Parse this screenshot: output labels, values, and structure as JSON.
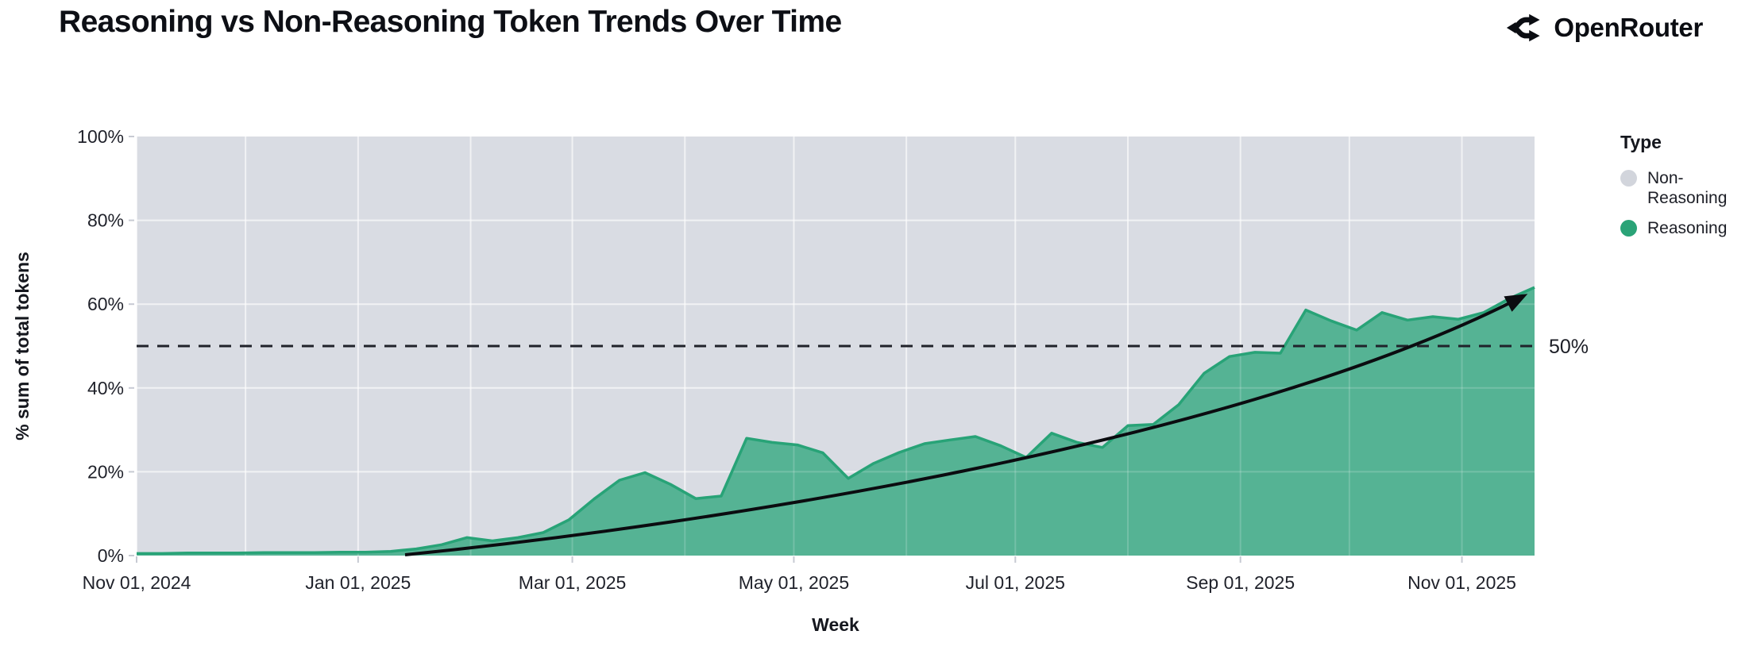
{
  "header": {
    "title": "Reasoning vs Non-Reasoning Token Trends Over Time",
    "brand": "OpenRouter"
  },
  "chart_data": {
    "type": "area",
    "stacked_percent": true,
    "title": "Reasoning vs Non-Reasoning Token Trends Over Time",
    "xlabel": "Week",
    "ylabel": "% sum of total tokens",
    "ylim": [
      0,
      100
    ],
    "grid": true,
    "y_ticks": [
      "0%",
      "20%",
      "40%",
      "60%",
      "80%",
      "100%"
    ],
    "y_tick_values": [
      0,
      20,
      40,
      60,
      80,
      100
    ],
    "x_ticks": [
      "Nov 01, 2024",
      "Jan 01, 2025",
      "Mar 01, 2025",
      "May 01, 2025",
      "Jul 01, 2025",
      "Sep 01, 2025",
      "Nov 01, 2025"
    ],
    "x_tick_dates": [
      "2024-11-01",
      "2025-01-01",
      "2025-03-01",
      "2025-05-01",
      "2025-07-01",
      "2025-09-01",
      "2025-11-01"
    ],
    "x_domain": [
      "2024-11-01",
      "2025-11-21"
    ],
    "legend": {
      "title": "Type",
      "position": "right",
      "entries": [
        {
          "label": "Non-Reasoning",
          "color": "#d2d5dc"
        },
        {
          "label": "Reasoning",
          "color": "#2aa377"
        }
      ]
    },
    "x": [
      "2024-11-01",
      "2024-11-08",
      "2024-11-15",
      "2024-11-22",
      "2024-11-29",
      "2024-12-06",
      "2024-12-13",
      "2024-12-20",
      "2024-12-27",
      "2025-01-03",
      "2025-01-10",
      "2025-01-17",
      "2025-01-24",
      "2025-01-31",
      "2025-02-07",
      "2025-02-14",
      "2025-02-21",
      "2025-02-28",
      "2025-03-07",
      "2025-03-14",
      "2025-03-21",
      "2025-03-28",
      "2025-04-04",
      "2025-04-11",
      "2025-04-18",
      "2025-04-25",
      "2025-05-02",
      "2025-05-09",
      "2025-05-16",
      "2025-05-23",
      "2025-05-30",
      "2025-06-06",
      "2025-06-13",
      "2025-06-20",
      "2025-06-27",
      "2025-07-04",
      "2025-07-11",
      "2025-07-18",
      "2025-07-25",
      "2025-08-01",
      "2025-08-08",
      "2025-08-15",
      "2025-08-22",
      "2025-08-29",
      "2025-09-05",
      "2025-09-12",
      "2025-09-19",
      "2025-09-26",
      "2025-10-03",
      "2025-10-10",
      "2025-10-17",
      "2025-10-24",
      "2025-10-31",
      "2025-11-07",
      "2025-11-14",
      "2025-11-21"
    ],
    "series": [
      {
        "name": "Reasoning",
        "fill": "#55b394",
        "stroke": "#28a377",
        "values_pct": [
          0.5,
          0.5,
          0.6,
          0.6,
          0.6,
          0.7,
          0.7,
          0.7,
          0.8,
          0.8,
          1.0,
          1.6,
          2.6,
          4.3,
          3.5,
          4.3,
          5.5,
          8.5,
          13.5,
          18.0,
          19.8,
          17.0,
          13.6,
          14.2,
          28.0,
          27.0,
          26.4,
          24.5,
          18.4,
          22.0,
          24.6,
          26.7,
          27.6,
          28.4,
          26.2,
          23.4,
          29.2,
          27.0,
          25.8,
          31.0,
          31.3,
          36.0,
          43.5,
          47.5,
          48.5,
          48.3,
          58.6,
          56.0,
          53.8,
          58.0,
          56.2,
          57.0,
          56.4,
          58.0,
          61.3,
          64.0
        ]
      },
      {
        "name": "Non-Reasoning",
        "fill": "#d9dce3",
        "stroke": "none",
        "values_pct": [
          99.5,
          99.5,
          99.4,
          99.4,
          99.4,
          99.3,
          99.3,
          99.3,
          99.2,
          99.2,
          99.0,
          98.4,
          97.4,
          95.7,
          96.5,
          95.7,
          94.5,
          91.5,
          86.5,
          82.0,
          80.2,
          83.0,
          86.4,
          85.8,
          72.0,
          73.0,
          73.6,
          75.5,
          81.6,
          78.0,
          75.4,
          73.3,
          72.4,
          71.6,
          73.8,
          76.6,
          70.8,
          73.0,
          74.2,
          69.0,
          68.7,
          64.0,
          56.5,
          52.5,
          51.5,
          51.7,
          41.4,
          44.0,
          46.2,
          42.0,
          43.8,
          43.0,
          43.6,
          42.0,
          38.7,
          36.0
        ]
      }
    ],
    "annotations": [
      {
        "type": "hline",
        "value_pct": 50,
        "label": "50%",
        "line_style": "dashed",
        "color": "#20222a"
      },
      {
        "type": "trend_arrow",
        "start_date": "2025-01-14",
        "start_pct": 0,
        "end_date": "2025-11-18",
        "end_pct": 62,
        "color": "#0b0c10"
      }
    ],
    "plot_background": "#d9dce3"
  }
}
